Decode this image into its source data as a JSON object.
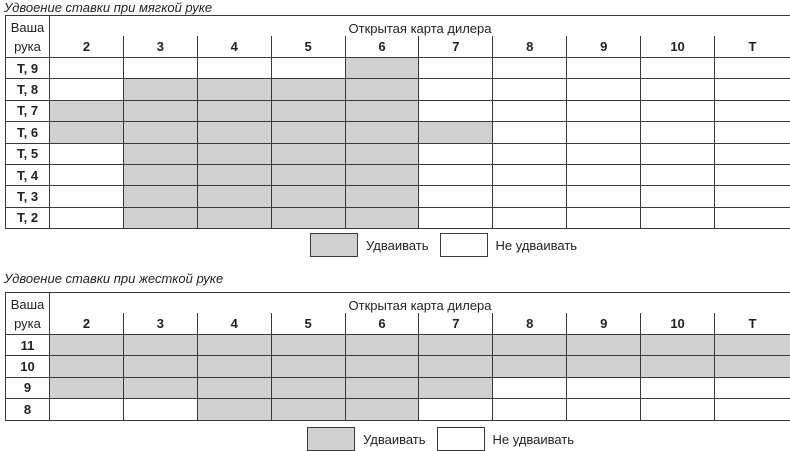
{
  "soft": {
    "title": "Удвоение ставки при мягкой руке",
    "hand_header": "Ваша рука",
    "dealer_header": "Открытая карта дилера",
    "columns": [
      "2",
      "3",
      "4",
      "5",
      "6",
      "7",
      "8",
      "9",
      "10",
      "Т"
    ],
    "rows": [
      {
        "label": "Т, 9",
        "double": [
          0,
          0,
          0,
          0,
          1,
          0,
          0,
          0,
          0,
          0
        ]
      },
      {
        "label": "Т, 8",
        "double": [
          0,
          1,
          1,
          1,
          1,
          0,
          0,
          0,
          0,
          0
        ]
      },
      {
        "label": "Т, 7",
        "double": [
          1,
          1,
          1,
          1,
          1,
          0,
          0,
          0,
          0,
          0
        ]
      },
      {
        "label": "Т, 6",
        "double": [
          1,
          1,
          1,
          1,
          1,
          1,
          0,
          0,
          0,
          0
        ]
      },
      {
        "label": "Т, 5",
        "double": [
          0,
          1,
          1,
          1,
          1,
          0,
          0,
          0,
          0,
          0
        ]
      },
      {
        "label": "Т, 4",
        "double": [
          0,
          1,
          1,
          1,
          1,
          0,
          0,
          0,
          0,
          0
        ]
      },
      {
        "label": "Т, 3",
        "double": [
          0,
          1,
          1,
          1,
          1,
          0,
          0,
          0,
          0,
          0
        ]
      },
      {
        "label": "Т, 2",
        "double": [
          0,
          1,
          1,
          1,
          1,
          0,
          0,
          0,
          0,
          0
        ]
      }
    ]
  },
  "hard": {
    "title": "Удвоение ставки при жесткой руке",
    "hand_header": "Ваша рука",
    "dealer_header": "Открытая карта дилера",
    "columns": [
      "2",
      "3",
      "4",
      "5",
      "6",
      "7",
      "8",
      "9",
      "10",
      "Т"
    ],
    "rows": [
      {
        "label": "11",
        "double": [
          1,
          1,
          1,
          1,
          1,
          1,
          1,
          1,
          1,
          1
        ]
      },
      {
        "label": "10",
        "double": [
          1,
          1,
          1,
          1,
          1,
          1,
          1,
          1,
          1,
          1
        ]
      },
      {
        "label": "9",
        "double": [
          1,
          1,
          1,
          1,
          1,
          1,
          0,
          0,
          0,
          0
        ]
      },
      {
        "label": "8",
        "double": [
          0,
          0,
          1,
          1,
          1,
          0,
          0,
          0,
          0,
          0
        ]
      }
    ]
  },
  "legend": {
    "double": "Удваивать",
    "no_double": "Не удваивать"
  },
  "colors": {
    "double": "#d1d1d1",
    "no_double": "#ffffff"
  }
}
